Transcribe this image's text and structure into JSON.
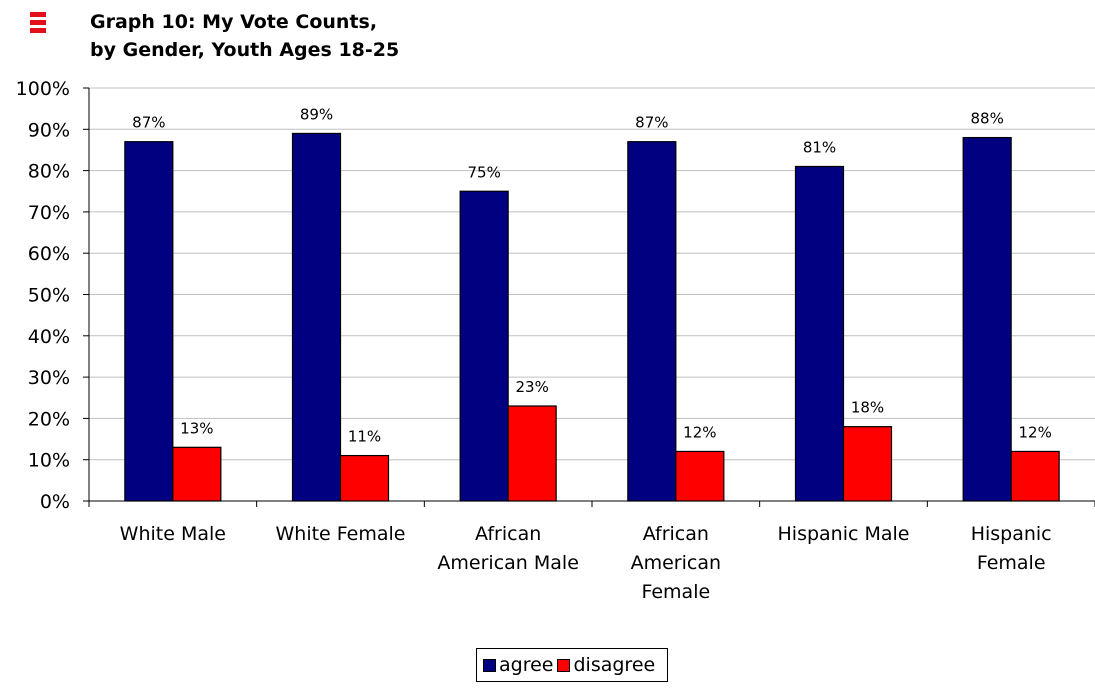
{
  "chart_data": {
    "type": "bar",
    "title_line1": "Graph 10:  My Vote Counts,",
    "title_line2": "by Gender, Youth Ages 18-25",
    "categories": [
      [
        "White Male"
      ],
      [
        "White Female"
      ],
      [
        "African",
        "American Male"
      ],
      [
        "African",
        "American",
        "Female"
      ],
      [
        "Hispanic Male"
      ],
      [
        "Hispanic",
        "Female"
      ]
    ],
    "series": [
      {
        "name": "agree",
        "color": "#000080",
        "values": [
          87,
          89,
          75,
          87,
          81,
          88
        ],
        "labels": [
          "87%",
          "89%",
          "75%",
          "87%",
          "81%",
          "88%"
        ]
      },
      {
        "name": "disagree",
        "color": "#ff0000",
        "values": [
          13,
          11,
          23,
          12,
          18,
          12
        ],
        "labels": [
          "13%",
          "11%",
          "23%",
          "12%",
          "18%",
          "12%"
        ]
      }
    ],
    "ylim": [
      0,
      100
    ],
    "yticks": [
      "0%",
      "10%",
      "20%",
      "30%",
      "40%",
      "50%",
      "60%",
      "70%",
      "80%",
      "90%",
      "100%"
    ],
    "grid": true,
    "legend_position": "bottom"
  }
}
